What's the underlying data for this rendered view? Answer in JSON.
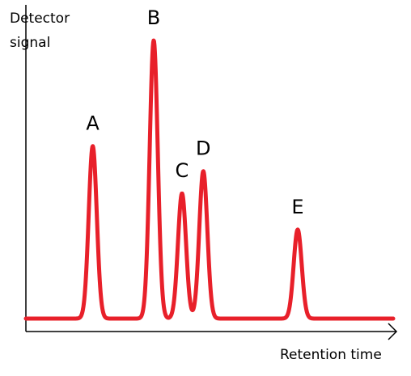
{
  "chart_data": {
    "type": "line",
    "title": "",
    "xlabel": "Retention time",
    "ylabel_lines": [
      "Detector",
      "signal"
    ],
    "line_color": "#e8202a",
    "axis_color": "#000000",
    "grid": false,
    "legend": "none",
    "xlim": [
      0,
      100
    ],
    "ylim": [
      0,
      100
    ],
    "baseline": 0,
    "peaks": [
      {
        "label": "A",
        "x": 18.2,
        "height": 62
      },
      {
        "label": "B",
        "x": 34.8,
        "height": 100
      },
      {
        "label": "C",
        "x": 42.5,
        "height": 45
      },
      {
        "label": "D",
        "x": 48.3,
        "height": 53
      },
      {
        "label": "E",
        "x": 74.0,
        "height": 32
      }
    ]
  }
}
